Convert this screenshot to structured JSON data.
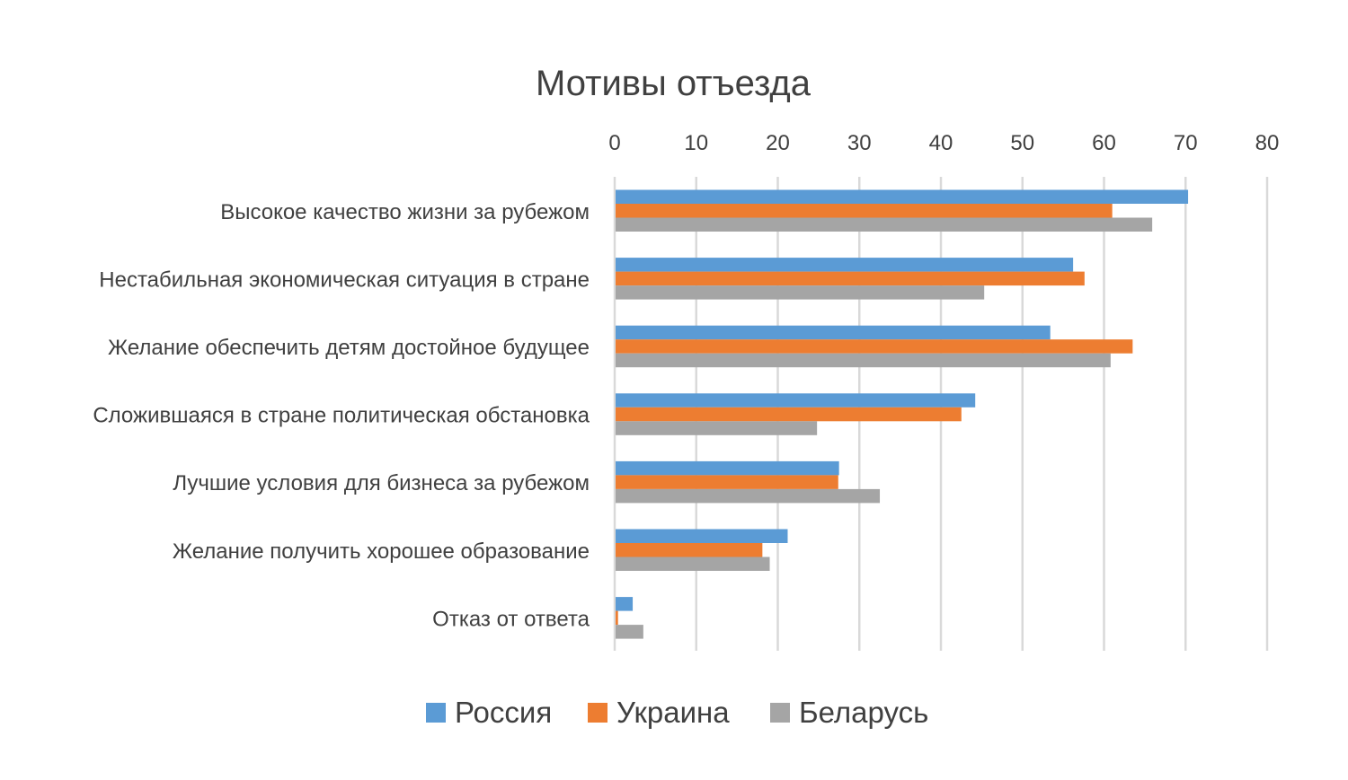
{
  "chart_data": {
    "type": "bar",
    "orientation": "horizontal",
    "title": "Мотивы отъезда",
    "xlabel": "",
    "ylabel": "",
    "xlim": [
      0,
      80
    ],
    "x_ticks": [
      "0",
      "10",
      "20",
      "30",
      "40",
      "50",
      "60",
      "70",
      "80"
    ],
    "x_axis_position": "top",
    "grid": true,
    "legend_position": "bottom",
    "categories": [
      "Высокое качество жизни за рубежом",
      "Нестабильная экономическая ситуация в стране",
      "Желание обеспечить детям достойное будущее",
      "Сложившаяся в стране политическая обстановка",
      "Лучшие условия для бизнеса за рубежом",
      "Желание получить хорошее образование",
      "Отказ от ответа"
    ],
    "series": [
      {
        "name": "Россия",
        "color": "#5b9bd5",
        "values": [
          70.2,
          56.1,
          53.3,
          44.1,
          27.4,
          21.1,
          2.1
        ]
      },
      {
        "name": "Украина",
        "color": "#ed7d31",
        "values": [
          60.9,
          57.5,
          63.4,
          42.4,
          27.3,
          18.0,
          0.3
        ]
      },
      {
        "name": "Беларусь",
        "color": "#a5a5a5",
        "values": [
          65.8,
          45.2,
          60.7,
          24.7,
          32.4,
          18.9,
          3.4
        ]
      }
    ]
  }
}
